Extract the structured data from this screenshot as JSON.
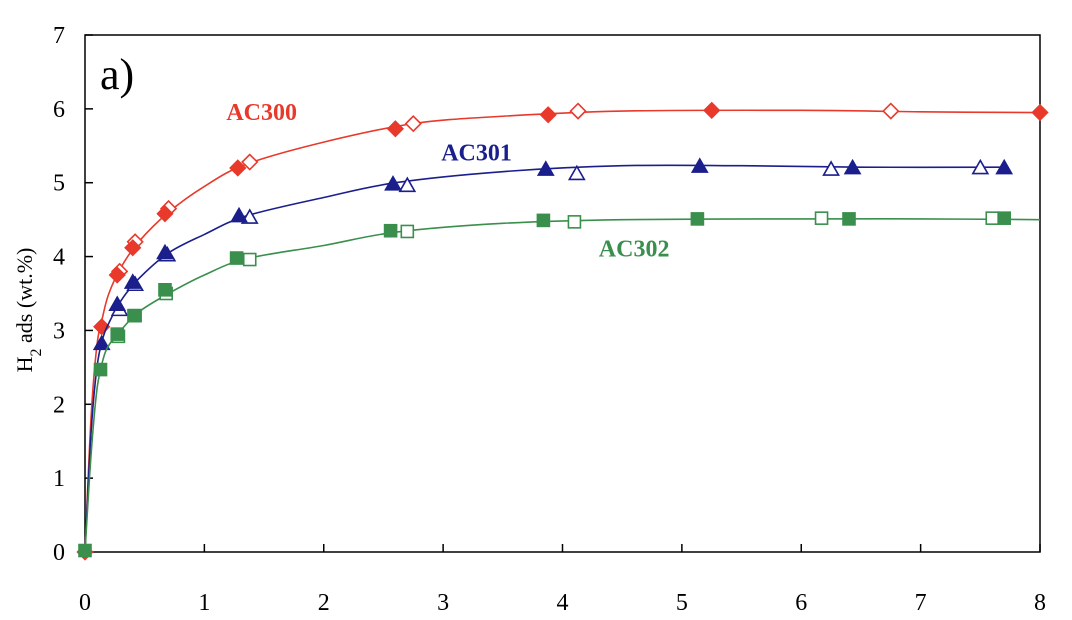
{
  "chart_data": {
    "type": "scatter",
    "panel_label": "a)",
    "xlabel": "",
    "ylabel_main": "H",
    "ylabel_sub": "2",
    "ylabel_rest": " ads (wt.%)",
    "xlim": [
      0,
      8
    ],
    "ylim": [
      0,
      7
    ],
    "x_ticks": [
      "0",
      "1",
      "2",
      "3",
      "4",
      "5",
      "6",
      "7",
      "8"
    ],
    "y_ticks": [
      "0",
      "1",
      "2",
      "3",
      "4",
      "5",
      "6",
      "7"
    ],
    "grid": false,
    "series": [
      {
        "name": "AC300",
        "color": "#e8392b",
        "marker": "diamond",
        "label_at": [
          1.48,
          5.85
        ],
        "curve": [
          [
            0,
            0
          ],
          [
            0.05,
            1.8
          ],
          [
            0.1,
            2.8
          ],
          [
            0.15,
            3.2
          ],
          [
            0.2,
            3.5
          ],
          [
            0.3,
            3.85
          ],
          [
            0.45,
            4.2
          ],
          [
            0.7,
            4.6
          ],
          [
            1.0,
            4.95
          ],
          [
            1.35,
            5.25
          ],
          [
            2.0,
            5.55
          ],
          [
            2.75,
            5.8
          ],
          [
            3.5,
            5.9
          ],
          [
            4.5,
            5.97
          ],
          [
            6.0,
            5.98
          ],
          [
            7.0,
            5.96
          ],
          [
            8.0,
            5.95
          ]
        ],
        "filled": [
          [
            0,
            0
          ],
          [
            0.14,
            3.05
          ],
          [
            0.27,
            3.75
          ],
          [
            0.4,
            4.12
          ],
          [
            0.67,
            4.58
          ],
          [
            1.28,
            5.2
          ],
          [
            2.6,
            5.73
          ],
          [
            3.88,
            5.92
          ],
          [
            5.25,
            5.98
          ],
          [
            8.0,
            5.95
          ]
        ],
        "open": [
          [
            0.29,
            3.8
          ],
          [
            0.42,
            4.2
          ],
          [
            0.7,
            4.65
          ],
          [
            1.38,
            5.28
          ],
          [
            2.75,
            5.8
          ],
          [
            4.13,
            5.97
          ],
          [
            6.75,
            5.97
          ]
        ]
      },
      {
        "name": "AC301",
        "color": "#1a1f8c",
        "marker": "triangle",
        "label_at": [
          3.28,
          5.3
        ],
        "curve": [
          [
            0,
            0
          ],
          [
            0.05,
            1.6
          ],
          [
            0.1,
            2.5
          ],
          [
            0.15,
            2.9
          ],
          [
            0.2,
            3.1
          ],
          [
            0.3,
            3.4
          ],
          [
            0.45,
            3.7
          ],
          [
            0.7,
            4.05
          ],
          [
            1.0,
            4.3
          ],
          [
            1.35,
            4.55
          ],
          [
            2.0,
            4.8
          ],
          [
            2.6,
            5.0
          ],
          [
            3.5,
            5.15
          ],
          [
            4.5,
            5.23
          ],
          [
            5.5,
            5.23
          ],
          [
            6.5,
            5.21
          ],
          [
            7.7,
            5.21
          ]
        ],
        "filled": [
          [
            0.14,
            2.82
          ],
          [
            0.27,
            3.35
          ],
          [
            0.4,
            3.65
          ],
          [
            0.67,
            4.05
          ],
          [
            1.29,
            4.55
          ],
          [
            2.58,
            4.98
          ],
          [
            3.86,
            5.18
          ],
          [
            5.15,
            5.22
          ],
          [
            6.43,
            5.2
          ],
          [
            7.7,
            5.2
          ]
        ],
        "open": [
          [
            0.29,
            3.28
          ],
          [
            0.42,
            3.62
          ],
          [
            0.69,
            4.02
          ],
          [
            1.38,
            4.53
          ],
          [
            2.7,
            4.96
          ],
          [
            4.12,
            5.12
          ],
          [
            6.25,
            5.18
          ],
          [
            7.5,
            5.2
          ]
        ]
      },
      {
        "name": "AC302",
        "color": "#3a8f4d",
        "marker": "square",
        "label_at": [
          4.6,
          4.0
        ],
        "curve": [
          [
            0,
            0
          ],
          [
            0.05,
            1.3
          ],
          [
            0.1,
            2.2
          ],
          [
            0.15,
            2.6
          ],
          [
            0.2,
            2.8
          ],
          [
            0.3,
            3.0
          ],
          [
            0.45,
            3.25
          ],
          [
            0.7,
            3.5
          ],
          [
            1.0,
            3.75
          ],
          [
            1.35,
            3.97
          ],
          [
            2.0,
            4.15
          ],
          [
            2.6,
            4.33
          ],
          [
            3.5,
            4.45
          ],
          [
            4.5,
            4.5
          ],
          [
            6.0,
            4.51
          ],
          [
            7.0,
            4.51
          ],
          [
            8.0,
            4.5
          ]
        ],
        "filled": [
          [
            0,
            0.02
          ],
          [
            0.13,
            2.47
          ],
          [
            0.27,
            2.95
          ],
          [
            0.41,
            3.2
          ],
          [
            0.67,
            3.55
          ],
          [
            1.27,
            3.98
          ],
          [
            2.56,
            4.35
          ],
          [
            3.84,
            4.49
          ],
          [
            5.13,
            4.51
          ],
          [
            6.4,
            4.51
          ],
          [
            7.7,
            4.52
          ]
        ],
        "open": [
          [
            0.28,
            2.92
          ],
          [
            0.42,
            3.2
          ],
          [
            0.68,
            3.5
          ],
          [
            1.38,
            3.96
          ],
          [
            2.7,
            4.34
          ],
          [
            4.1,
            4.47
          ],
          [
            6.17,
            4.52
          ],
          [
            7.6,
            4.52
          ]
        ]
      }
    ]
  }
}
